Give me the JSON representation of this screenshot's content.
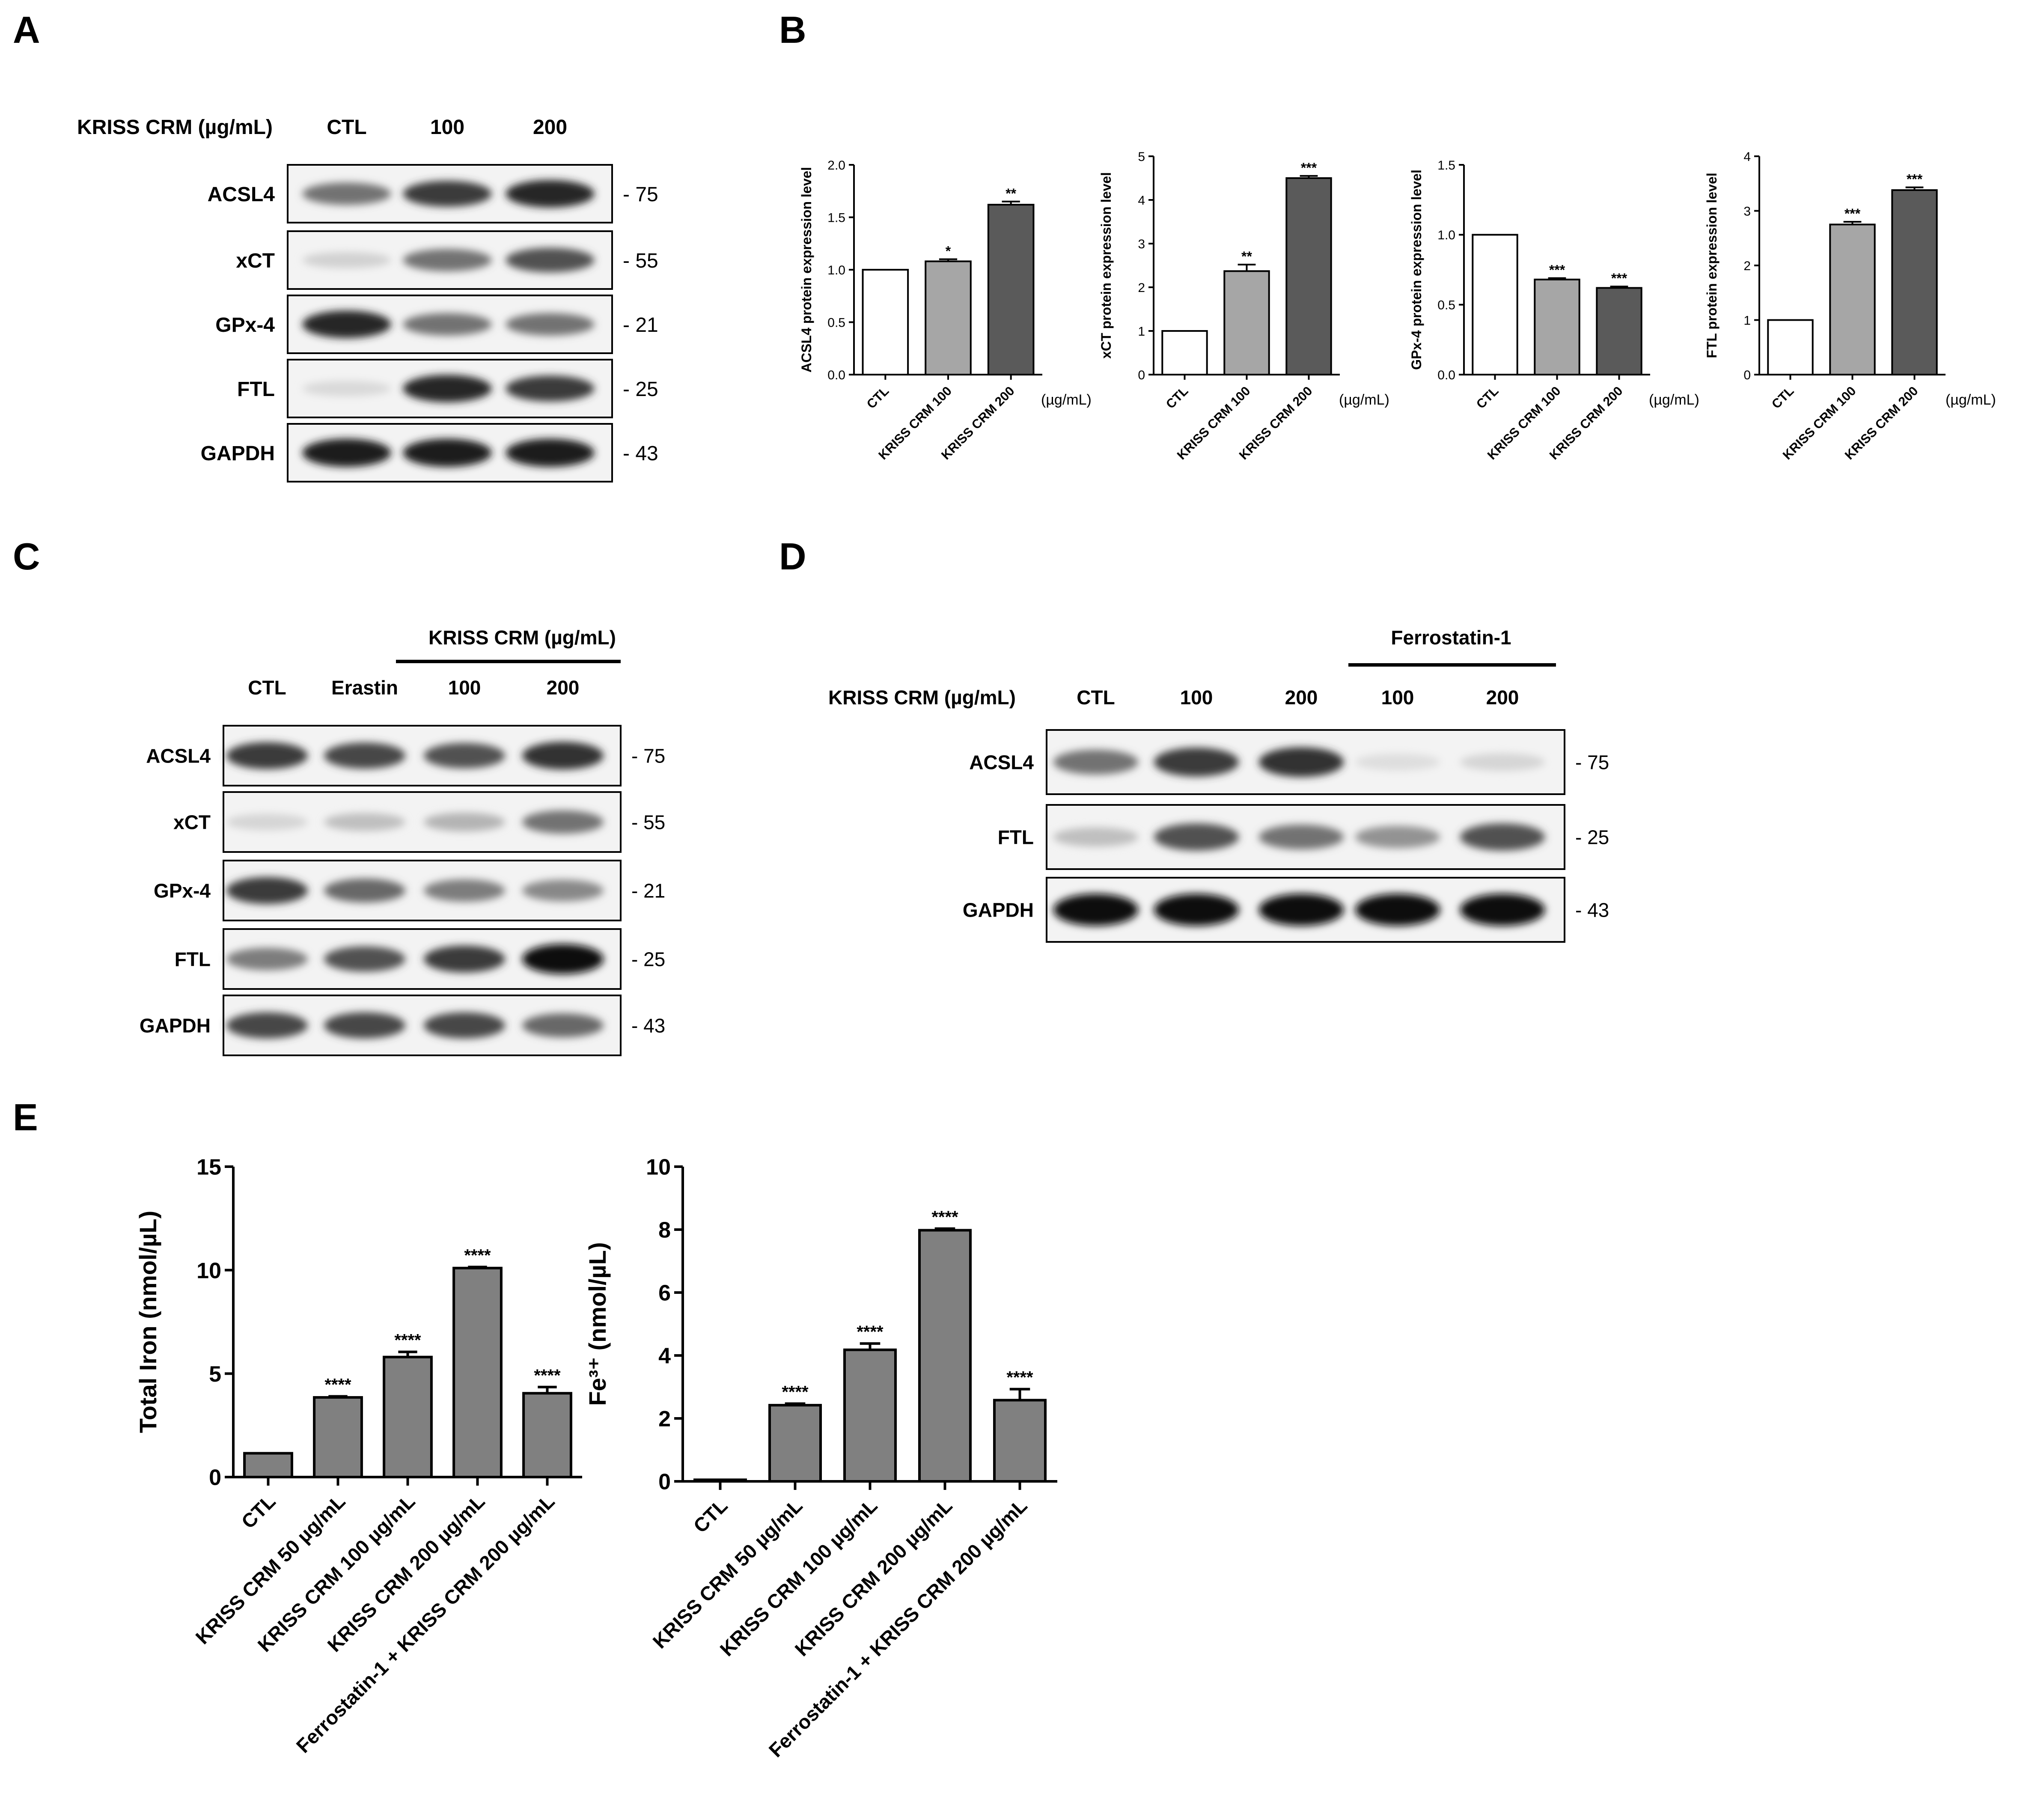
{
  "panels": {
    "A": {
      "letter": "A",
      "treatment_label": "KRISS CRM (µg/mL)",
      "lanes": [
        "CTL",
        "100",
        "200"
      ],
      "rows": [
        {
          "name": "ACSL4",
          "mw": "- 75",
          "intensity": [
            0.55,
            0.8,
            0.9
          ]
        },
        {
          "name": "xCT",
          "mw": "- 55",
          "intensity": [
            0.12,
            0.55,
            0.7
          ]
        },
        {
          "name": "GPx-4",
          "mw": "- 21",
          "intensity": [
            0.9,
            0.55,
            0.55
          ]
        },
        {
          "name": "FTL",
          "mw": "- 25",
          "intensity": [
            0.08,
            0.9,
            0.8
          ]
        },
        {
          "name": "GAPDH",
          "mw": "- 43",
          "intensity": [
            0.95,
            0.95,
            0.95
          ]
        }
      ]
    },
    "B": {
      "letter": "B",
      "unit_label": "(µg/mL)"
    },
    "C": {
      "letter": "C",
      "group_label": "KRISS CRM (µg/mL)",
      "lanes": [
        "CTL",
        "Erastin",
        "100",
        "200"
      ],
      "rows": [
        {
          "name": "ACSL4",
          "mw": "- 75",
          "intensity": [
            0.8,
            0.75,
            0.7,
            0.85
          ]
        },
        {
          "name": "xCT",
          "mw": "- 55",
          "intensity": [
            0.1,
            0.2,
            0.25,
            0.55
          ]
        },
        {
          "name": "GPx-4",
          "mw": "- 21",
          "intensity": [
            0.8,
            0.6,
            0.5,
            0.45
          ]
        },
        {
          "name": "FTL",
          "mw": "- 25",
          "intensity": [
            0.5,
            0.7,
            0.8,
            1.0
          ]
        },
        {
          "name": "GAPDH",
          "mw": "- 43",
          "intensity": [
            0.75,
            0.75,
            0.75,
            0.6
          ]
        }
      ]
    },
    "D": {
      "letter": "D",
      "treatment_label": "KRISS CRM (µg/mL)",
      "group_label": "Ferrostatin-1",
      "lanes": [
        "CTL",
        "100",
        "200",
        "100",
        "200"
      ],
      "rows": [
        {
          "name": "ACSL4",
          "mw": "- 75",
          "intensity": [
            0.55,
            0.8,
            0.85,
            0.06,
            0.1
          ]
        },
        {
          "name": "FTL",
          "mw": "- 25",
          "intensity": [
            0.2,
            0.7,
            0.55,
            0.4,
            0.7
          ]
        },
        {
          "name": "GAPDH",
          "mw": "- 43",
          "intensity": [
            1.0,
            1.0,
            1.0,
            1.0,
            1.0
          ]
        }
      ]
    },
    "E": {
      "letter": "E"
    }
  },
  "chart_data": [
    {
      "type": "bar",
      "panel": "B",
      "categories": [
        "CTL",
        "KRISS CRM 100",
        "KRISS CRM 200"
      ],
      "values": [
        1.0,
        1.08,
        1.62
      ],
      "errors": [
        0,
        0.02,
        0.03
      ],
      "significance": [
        "",
        "*",
        "**"
      ],
      "bar_colors": [
        "#ffffff",
        "#a6a6a6",
        "#5a5a5a"
      ],
      "ylabel": "ACSL4 protein expression level",
      "xlabel": "(µg/mL)",
      "ylim": [
        0,
        2.0
      ],
      "yticks": [
        0.0,
        0.5,
        1.0,
        1.5,
        2.0
      ],
      "ytick_labels": [
        "0.0",
        "0.5",
        "1.0",
        "1.5",
        "2.0"
      ]
    },
    {
      "type": "bar",
      "panel": "B",
      "categories": [
        "CTL",
        "KRISS CRM 100",
        "KRISS CRM 200"
      ],
      "values": [
        1.0,
        2.37,
        4.5
      ],
      "errors": [
        0,
        0.15,
        0.05
      ],
      "significance": [
        "",
        "**",
        "***"
      ],
      "bar_colors": [
        "#ffffff",
        "#a6a6a6",
        "#5a5a5a"
      ],
      "ylabel": "xCT protein expression level",
      "xlabel": "(µg/mL)",
      "ylim": [
        0,
        5
      ],
      "yticks": [
        0,
        1,
        2,
        3,
        4,
        5
      ],
      "ytick_labels": [
        "0",
        "1",
        "2",
        "3",
        "4",
        "5"
      ]
    },
    {
      "type": "bar",
      "panel": "B",
      "categories": [
        "CTL",
        "KRISS CRM 100",
        "KRISS CRM 200"
      ],
      "values": [
        1.0,
        0.68,
        0.62
      ],
      "errors": [
        0,
        0.01,
        0.01
      ],
      "significance": [
        "",
        "***",
        "***"
      ],
      "bar_colors": [
        "#ffffff",
        "#a6a6a6",
        "#5a5a5a"
      ],
      "ylabel": "GPx-4 protein expression level",
      "xlabel": "(µg/mL)",
      "ylim": [
        0,
        1.5
      ],
      "yticks": [
        0.0,
        0.5,
        1.0,
        1.5
      ],
      "ytick_labels": [
        "0.0",
        "0.5",
        "1.0",
        "1.5"
      ]
    },
    {
      "type": "bar",
      "panel": "B",
      "categories": [
        "CTL",
        "KRISS CRM 100",
        "KRISS CRM 200"
      ],
      "values": [
        1.0,
        2.75,
        3.38
      ],
      "errors": [
        0,
        0.05,
        0.05
      ],
      "significance": [
        "",
        "***",
        "***"
      ],
      "bar_colors": [
        "#ffffff",
        "#a6a6a6",
        "#5a5a5a"
      ],
      "ylabel": "FTL protein expression level",
      "xlabel": "(µg/mL)",
      "ylim": [
        0,
        4
      ],
      "yticks": [
        0,
        1,
        2,
        3,
        4
      ],
      "ytick_labels": [
        "0",
        "1",
        "2",
        "3",
        "4"
      ]
    },
    {
      "type": "bar",
      "panel": "E",
      "categories": [
        "CTL",
        "KRISS CRM 50 µg/mL",
        "KRISS CRM 100 µg/mL",
        "KRISS CRM 200 µg/mL",
        "Ferrostatin-1 + KRISS CRM 200 µg/mL"
      ],
      "values": [
        1.15,
        3.85,
        5.8,
        10.1,
        4.05
      ],
      "errors": [
        0,
        0.05,
        0.25,
        0.05,
        0.3
      ],
      "significance": [
        "",
        "****",
        "****",
        "****",
        "****"
      ],
      "bar_colors": [
        "#808080",
        "#808080",
        "#808080",
        "#808080",
        "#808080"
      ],
      "ylabel": "Total Iron (nmol/µL)",
      "ylim": [
        0,
        15
      ],
      "yticks": [
        0,
        5,
        10,
        15
      ],
      "ytick_labels": [
        "0",
        "5",
        "10",
        "15"
      ]
    },
    {
      "type": "bar",
      "panel": "E",
      "categories": [
        "CTL",
        "KRISS CRM 50 µg/mL",
        "KRISS CRM 100 µg/mL",
        "KRISS CRM 200 µg/mL",
        "Ferrostatin-1 + KRISS CRM 200 µg/mL"
      ],
      "values": [
        0.05,
        2.42,
        4.18,
        7.98,
        2.58
      ],
      "errors": [
        0,
        0.05,
        0.2,
        0.05,
        0.35
      ],
      "significance": [
        "",
        "****",
        "****",
        "****",
        "****"
      ],
      "bar_colors": [
        "#808080",
        "#808080",
        "#808080",
        "#808080",
        "#808080"
      ],
      "ylabel": "Fe³⁺ (nmol/µL)",
      "ylim": [
        0,
        10
      ],
      "yticks": [
        0,
        2,
        4,
        6,
        8,
        10
      ],
      "ytick_labels": [
        "0",
        "2",
        "4",
        "6",
        "8",
        "10"
      ]
    }
  ]
}
